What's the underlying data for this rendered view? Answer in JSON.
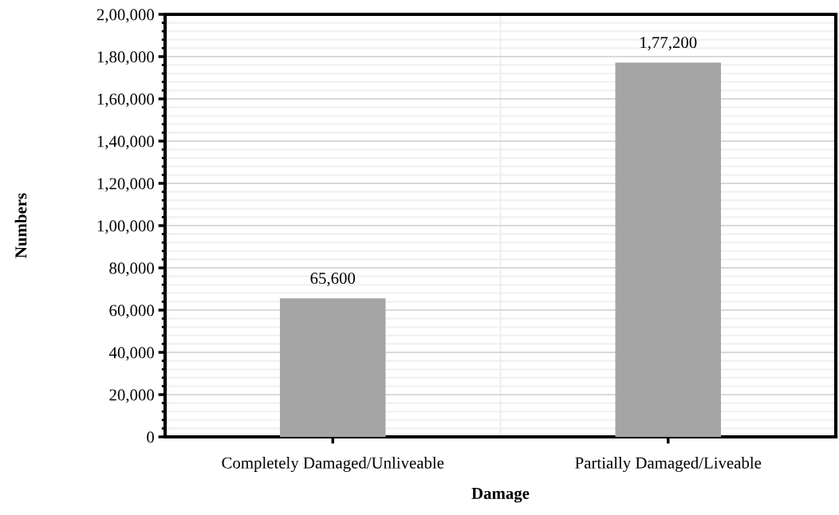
{
  "chart_data": {
    "type": "bar",
    "xlabel": "Damage",
    "ylabel": "Numbers",
    "categories": [
      "Completely Damaged/Unliveable",
      "Partially Damaged/Liveable"
    ],
    "values": [
      65600,
      177200
    ],
    "color": "#a5a5a5",
    "value_labels": [
      "65,600",
      "1,77,200"
    ],
    "ylim": [
      0,
      200000
    ],
    "yticks": [
      0,
      {
        "value": 20000,
        "label": "20,000"
      },
      {
        "value": 40000,
        "label": "40,000"
      },
      {
        "value": 60000,
        "label": "60,000"
      },
      {
        "value": 80000,
        "label": "80,000"
      },
      {
        "value": 100000,
        "label": "1,00,000"
      },
      {
        "value": 120000,
        "label": "1,20,000"
      },
      {
        "value": 140000,
        "label": "1,40,000"
      },
      {
        "value": 160000,
        "label": "1,60,000"
      },
      {
        "value": 180000,
        "label": "1,80,000"
      },
      {
        "value": 200000,
        "label": "2,00,000"
      }
    ],
    "grid": true
  }
}
